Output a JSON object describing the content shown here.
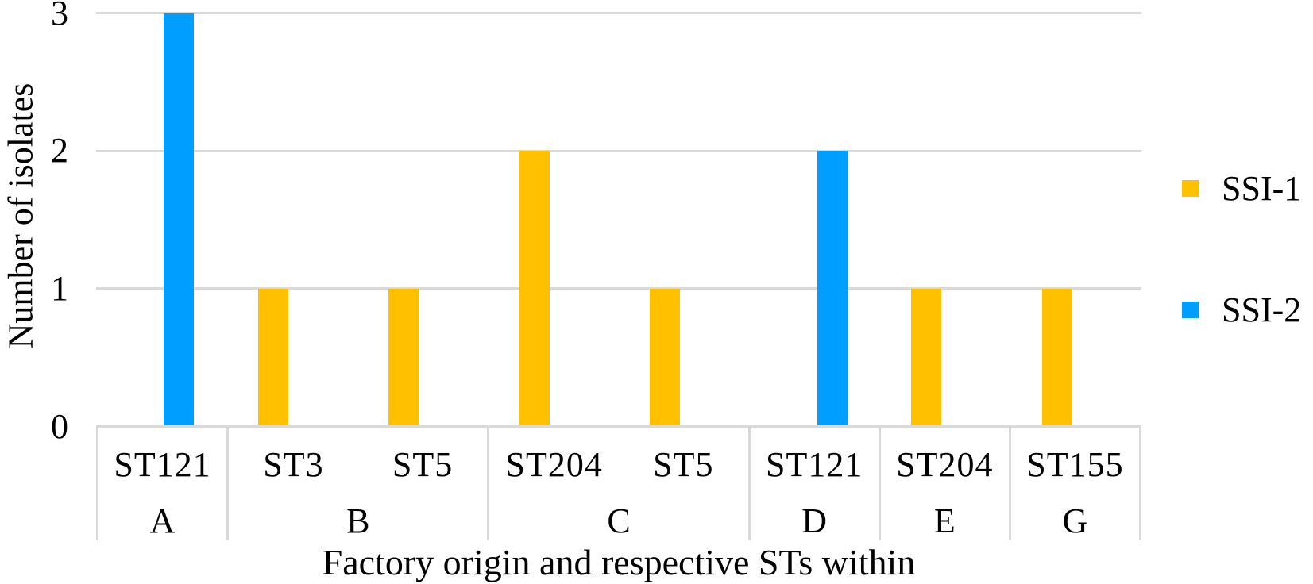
{
  "chart_data": {
    "type": "bar",
    "title": "",
    "xlabel": "Factory origin and respective STs within",
    "ylabel": "Number of isolates",
    "ylim": [
      0,
      3
    ],
    "y_ticks": [
      0,
      1,
      2,
      3
    ],
    "grid": true,
    "legend_position": "right",
    "legend": [
      {
        "name": "SSI-1",
        "color": "#FFC000"
      },
      {
        "name": "SSI-2",
        "color": "#009FFF"
      }
    ],
    "groups": [
      {
        "factory": "A",
        "bars": [
          {
            "st": "ST121",
            "series": "SSI-2",
            "value": 3
          }
        ]
      },
      {
        "factory": "B",
        "bars": [
          {
            "st": "ST3",
            "series": "SSI-1",
            "value": 1
          },
          {
            "st": "ST5",
            "series": "SSI-1",
            "value": 1
          }
        ]
      },
      {
        "factory": "C",
        "bars": [
          {
            "st": "ST204",
            "series": "SSI-1",
            "value": 2
          },
          {
            "st": "ST5",
            "series": "SSI-1",
            "value": 1
          }
        ]
      },
      {
        "factory": "D",
        "bars": [
          {
            "st": "ST121",
            "series": "SSI-2",
            "value": 2
          }
        ]
      },
      {
        "factory": "E",
        "bars": [
          {
            "st": "ST204",
            "series": "SSI-1",
            "value": 1
          }
        ]
      },
      {
        "factory": "G",
        "bars": [
          {
            "st": "ST155",
            "series": "SSI-1",
            "value": 1
          }
        ]
      }
    ]
  }
}
